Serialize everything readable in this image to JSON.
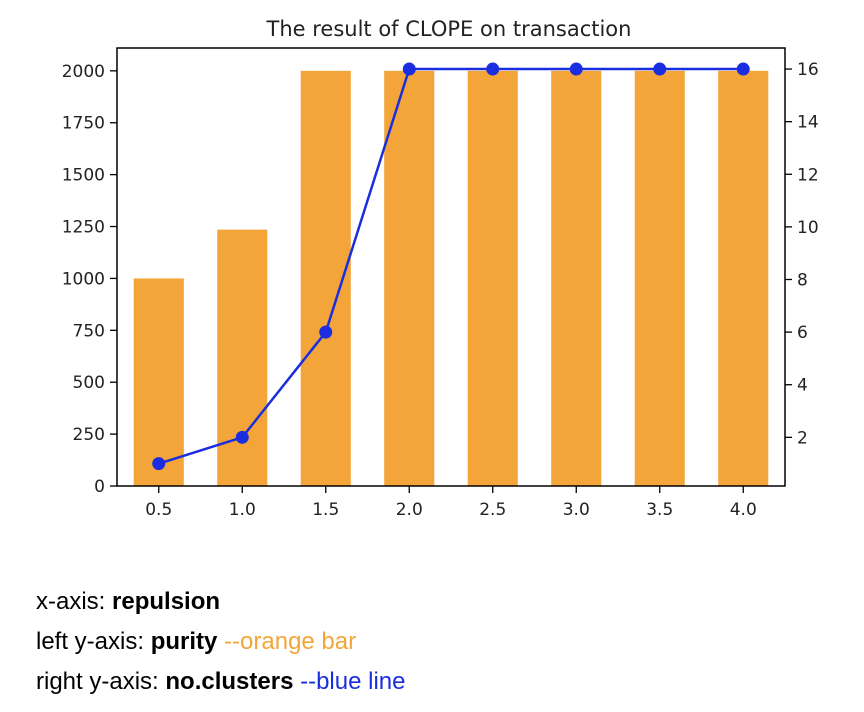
{
  "chart_data": {
    "type": "bar+line",
    "title": "The result of CLOPE on transaction",
    "categories": [
      "0.5",
      "1.0",
      "1.5",
      "2.0",
      "2.5",
      "3.0",
      "3.5",
      "4.0"
    ],
    "x": [
      0.5,
      1.0,
      1.5,
      2.0,
      2.5,
      3.0,
      3.5,
      4.0
    ],
    "series": [
      {
        "type": "bar",
        "axis": "left",
        "color": "#f4a53a",
        "values": [
          1000,
          1235,
          2000,
          2000,
          2000,
          2000,
          2000,
          2000
        ]
      },
      {
        "type": "line",
        "axis": "right",
        "color": "#1a2ee0",
        "marker": "circle",
        "values": [
          1,
          2,
          6,
          16,
          16,
          16,
          16,
          16
        ]
      }
    ],
    "xlim": [
      0.25,
      4.25
    ],
    "ylim_left": [
      0,
      2110
    ],
    "ylim_right": [
      0.15,
      16.8
    ],
    "yticks_left": [
      0,
      250,
      500,
      750,
      1000,
      1250,
      1500,
      1750,
      2000
    ],
    "yticks_right": [
      2,
      4,
      6,
      8,
      10,
      12,
      14,
      16
    ],
    "grid": false,
    "legend": "none"
  },
  "caption": {
    "x_axis": {
      "prefix": "x-axis: ",
      "label": "repulsion"
    },
    "left_axis": {
      "prefix": "left y-axis: ",
      "label": "purity",
      "note": " --orange bar",
      "note_color": "#f4a53a"
    },
    "right_axis": {
      "prefix": "right y-axis: ",
      "label": "no.clusters",
      "note": " --blue line",
      "note_color": "#1a2ee0"
    }
  }
}
